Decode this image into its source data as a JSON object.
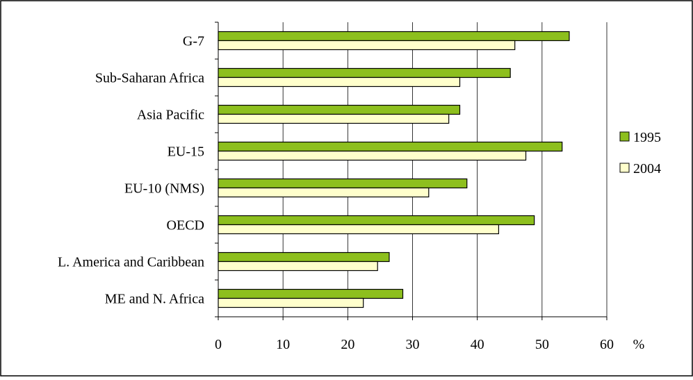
{
  "chart_data": {
    "type": "bar",
    "orientation": "horizontal",
    "categories": [
      "G-7",
      "Sub-Saharan Africa",
      "Asia Pacific",
      "EU-15",
      "EU-10 (NMS)",
      "OECD",
      "L. America and Caribbean",
      "ME and N. Africa"
    ],
    "series": [
      {
        "name": "1995",
        "color": "#8DBF1E",
        "values": [
          54.2,
          45.1,
          37.3,
          53.1,
          38.4,
          48.8,
          26.4,
          28.5
        ]
      },
      {
        "name": "2004",
        "color": "#FFFFCC",
        "values": [
          45.8,
          37.3,
          35.6,
          47.5,
          32.5,
          43.3,
          24.6,
          22.4
        ]
      }
    ],
    "xlim": [
      0,
      60
    ],
    "xticks": [
      "0",
      "10",
      "20",
      "30",
      "40",
      "50",
      "60"
    ],
    "xunit": "%",
    "grid": true,
    "legend_position": "right"
  }
}
